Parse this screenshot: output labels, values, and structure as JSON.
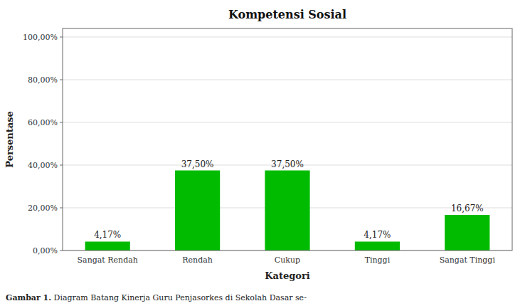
{
  "chart_data": {
    "type": "bar",
    "title": "Kompetensi Sosial",
    "categories": [
      "Sangat Rendah",
      "Rendah",
      "Cukup",
      "Tinggi",
      "Sangat Tinggi"
    ],
    "values": [
      4.17,
      37.5,
      37.5,
      4.17,
      16.67
    ],
    "value_labels": [
      "4,17%",
      "37,50%",
      "37,50%",
      "4,17%",
      "16,67%"
    ],
    "data_labels": true,
    "color": "#00BB00",
    "xlabel": "Kategori",
    "ylabel": "Persentase",
    "ylim": [
      0,
      104
    ],
    "yticks": [
      {
        "value": 0,
        "label": "0,00%"
      },
      {
        "value": 20,
        "label": "20,00%"
      },
      {
        "value": 40,
        "label": "40,00%"
      },
      {
        "value": 60,
        "label": "60,00%"
      },
      {
        "value": 80,
        "label": "80,00%"
      },
      {
        "value": 100,
        "label": "100,00%"
      }
    ],
    "grid": true,
    "caption_bold": "Gambar 1.",
    "caption": " Diagram Batang Kinerja Guru Penjasorkes di Sekolah Dasar se-"
  }
}
